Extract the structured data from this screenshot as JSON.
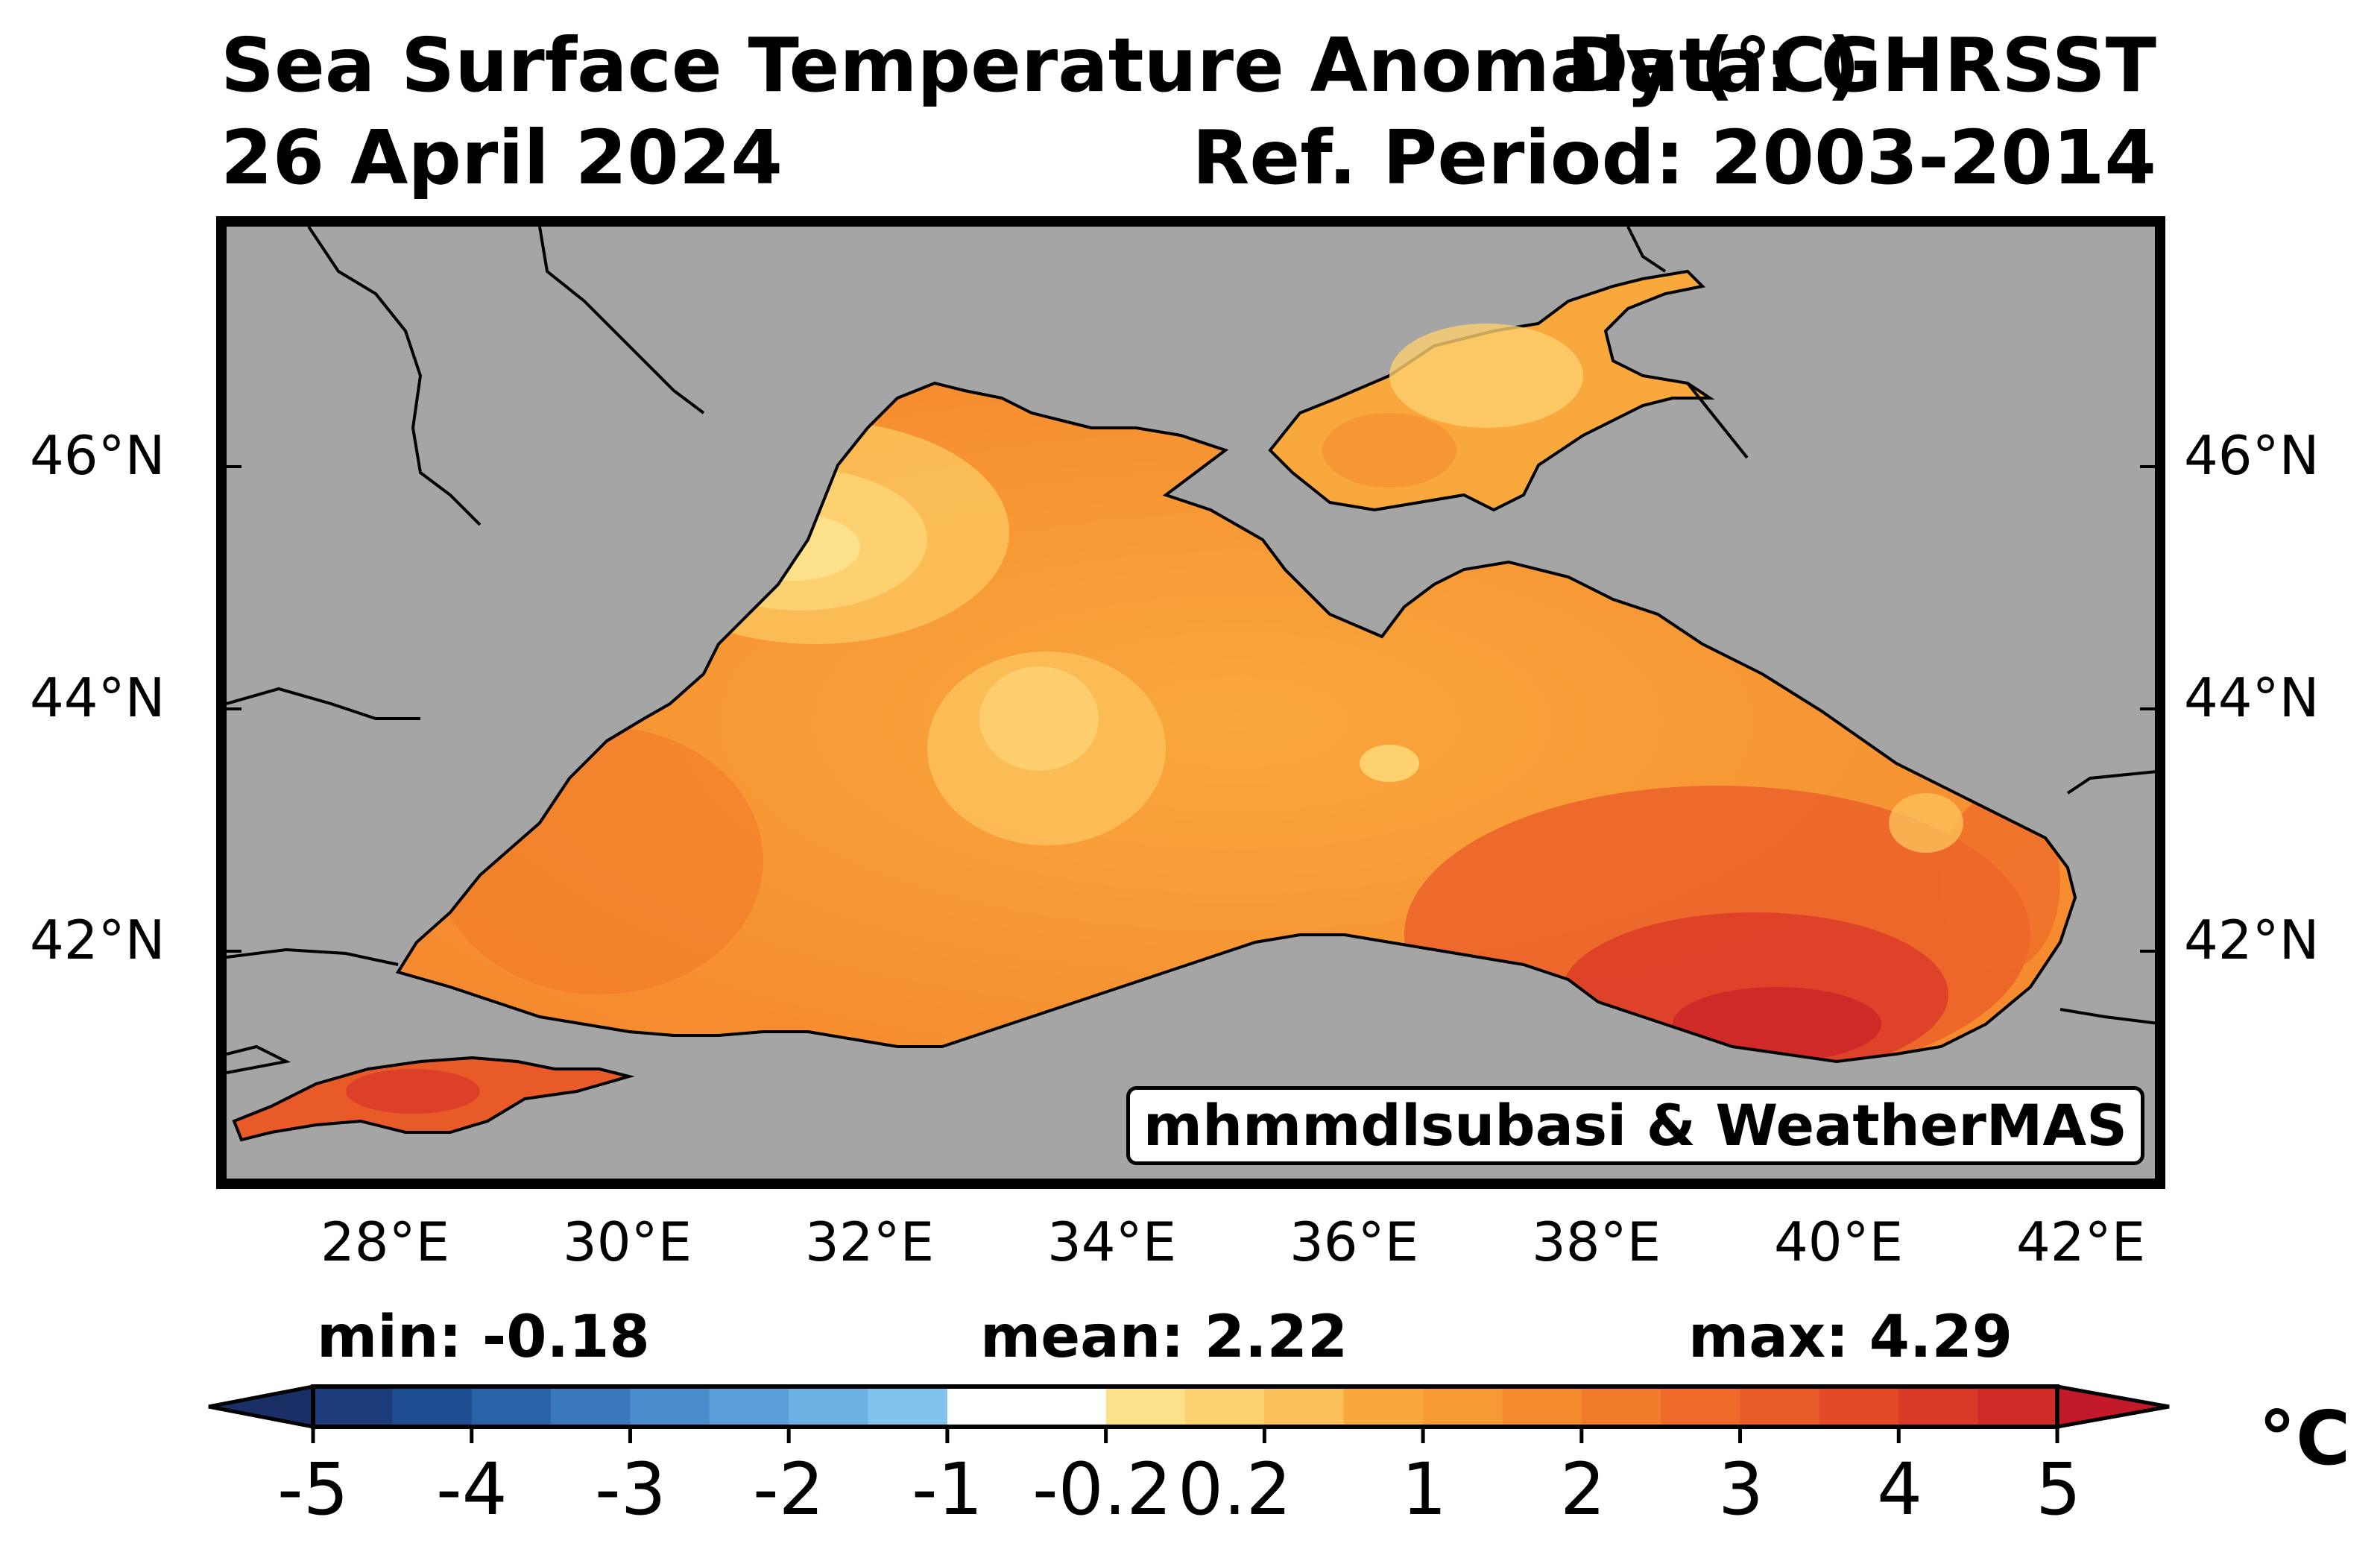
{
  "header": {
    "title_left": "Sea Surface Temperature Anomaly (°C)",
    "title_right": "Data: GHRSST",
    "date": "26 April 2024",
    "ref_period": "Ref. Period: 2003-2014"
  },
  "map": {
    "region": "Black Sea and Sea of Azov",
    "lat_labels": [
      "46°N",
      "44°N",
      "42°N"
    ],
    "lon_labels": [
      "28°E",
      "30°E",
      "32°E",
      "34°E",
      "36°E",
      "38°E",
      "40°E",
      "42°E"
    ],
    "land_color": "#a5a5a5",
    "credit": "mhmmdlsubasi & WeatherMAS"
  },
  "stats": {
    "min": "min: -0.18",
    "mean": "mean: 2.22",
    "max": "max: 4.29"
  },
  "colorbar": {
    "unit": "°C",
    "ticks": [
      "-5",
      "-4",
      "-3",
      "-2",
      "-1",
      "-0.2",
      "0.2",
      "1",
      "2",
      "3",
      "4",
      "5"
    ],
    "colors": [
      "#1c3c7a",
      "#1f4d92",
      "#2a63a8",
      "#3a78bc",
      "#4a8dcc",
      "#5a9fd9",
      "#6cb1e4",
      "#80c3ec",
      "#ffffff",
      "#ffffff",
      "#fde08a",
      "#fdd070",
      "#fbc05a",
      "#f9a83c",
      "#f79a33",
      "#f58a2e",
      "#f27a2b",
      "#ee6a29",
      "#e95a29",
      "#e24a28",
      "#d93a28",
      "#d02a28"
    ]
  }
}
